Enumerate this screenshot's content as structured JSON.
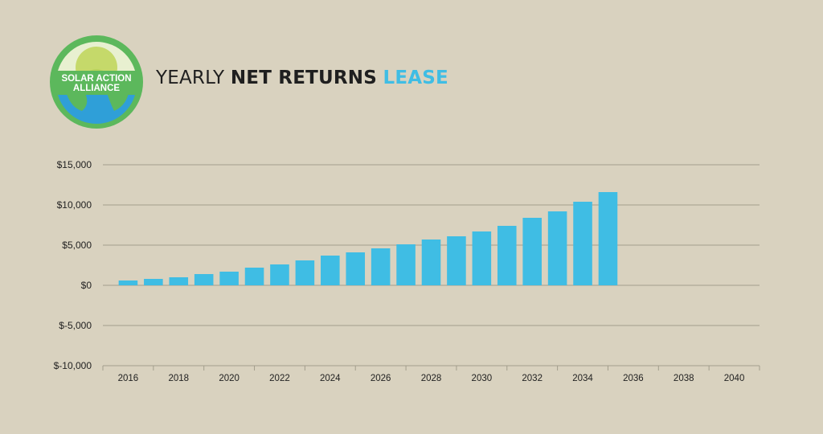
{
  "header": {
    "title_part1": "YEARLY",
    "title_part2": "NET RETURNS",
    "title_part3": "LEASE"
  },
  "logo": {
    "line1": "SOLAR ACTION",
    "line2": "ALLIANCE"
  },
  "colors": {
    "background": "#d9d2bf",
    "bar": "#3fbde4",
    "logo_green": "#5cb85c",
    "logo_blue": "#2f9fd8"
  },
  "chart_data": {
    "type": "bar",
    "title": "YEARLY NET RETURNS LEASE",
    "xlabel": "",
    "ylabel": "",
    "ylim": [
      -10000,
      15000
    ],
    "yticks": [
      15000,
      10000,
      5000,
      0,
      -5000,
      -10000
    ],
    "ytick_labels": [
      "$15,000",
      "$10,000",
      "$5,000",
      "$0",
      "$-5,000",
      "$-10,000"
    ],
    "xlim": [
      2015,
      2041
    ],
    "xtick_labels": [
      "2016",
      "2018",
      "2020",
      "2022",
      "2024",
      "2026",
      "2028",
      "2030",
      "2032",
      "2034",
      "2036",
      "2038",
      "2040"
    ],
    "grid": true,
    "x": [
      2016,
      2017,
      2018,
      2019,
      2020,
      2021,
      2022,
      2023,
      2024,
      2025,
      2026,
      2027,
      2028,
      2029,
      2030,
      2031,
      2032,
      2033,
      2034,
      2035
    ],
    "values": [
      600,
      800,
      1000,
      1400,
      1700,
      2200,
      2600,
      3100,
      3700,
      4100,
      4600,
      5100,
      5700,
      6100,
      6700,
      7400,
      8400,
      9200,
      10400,
      11600
    ]
  }
}
